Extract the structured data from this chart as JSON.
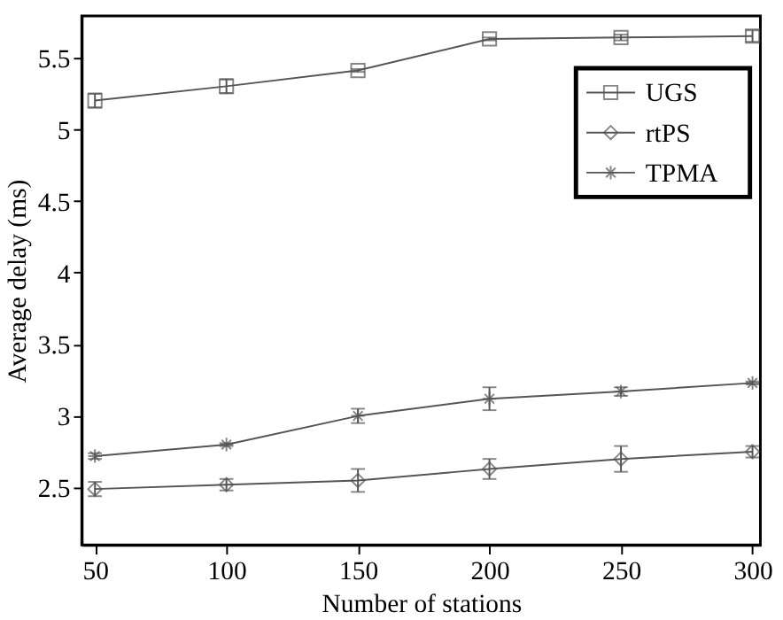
{
  "chart_data": {
    "type": "line",
    "xlabel": "Number of stations",
    "ylabel": "Average delay (ms)",
    "x": [
      50,
      100,
      150,
      200,
      250,
      300
    ],
    "series": [
      {
        "name": "UGS",
        "color": "#555555",
        "marker": "square",
        "values": [
          5.2,
          5.3,
          5.41,
          5.63,
          5.64,
          5.65
        ],
        "errors": [
          0.05,
          0.05,
          0.01,
          0.01,
          0.02,
          0.04
        ]
      },
      {
        "name": "rtPS",
        "color": "#555555",
        "marker": "diamond",
        "values": [
          2.49,
          2.52,
          2.55,
          2.63,
          2.7,
          2.75
        ],
        "errors": [
          0.05,
          0.04,
          0.08,
          0.07,
          0.09,
          0.04
        ]
      },
      {
        "name": "TPMA",
        "color": "#555555",
        "marker": "cross",
        "values": [
          2.72,
          2.8,
          3.0,
          3.12,
          3.17,
          3.23
        ],
        "errors": [
          0.02,
          0.01,
          0.05,
          0.08,
          0.03,
          0.01
        ]
      }
    ],
    "xlim": [
      45,
      303
    ],
    "xticks": [
      50,
      100,
      150,
      200,
      250,
      300
    ],
    "ylim": [
      2.1,
      5.79
    ],
    "yticks": [
      2.5,
      3,
      3.5,
      4,
      4.5,
      5,
      5.5
    ],
    "grid": false,
    "legend": "top right",
    "line_style": "solid"
  }
}
